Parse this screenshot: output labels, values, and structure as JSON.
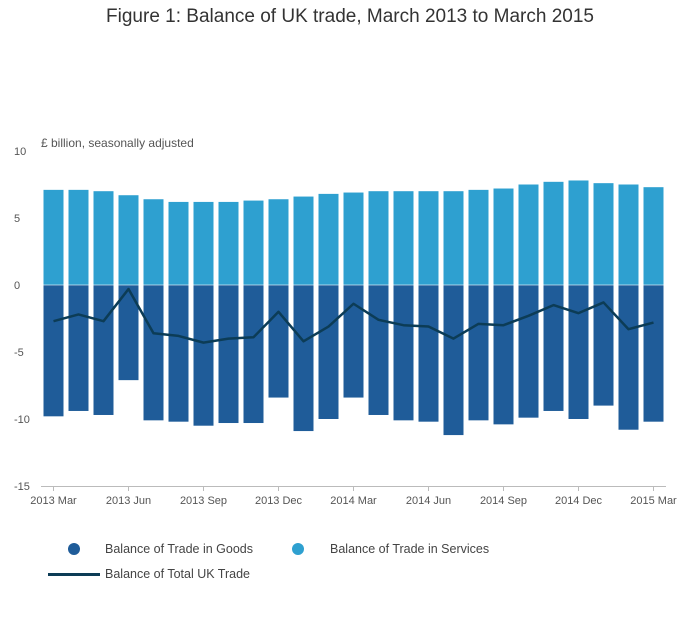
{
  "chart_data": {
    "type": "bar",
    "title": "Figure 1: Balance of UK trade, March 2013 to March 2015",
    "unit_label": "£ billion, seasonally adjusted",
    "ylim": [
      -15,
      10
    ],
    "yticks": [
      10,
      5,
      0,
      -5,
      -10,
      -15
    ],
    "categories": [
      "2013 Mar",
      "2013 Apr",
      "2013 May",
      "2013 Jun",
      "2013 Jul",
      "2013 Aug",
      "2013 Sep",
      "2013 Oct",
      "2013 Nov",
      "2013 Dec",
      "2014 Jan",
      "2014 Feb",
      "2014 Mar",
      "2014 Apr",
      "2014 May",
      "2014 Jun",
      "2014 Jul",
      "2014 Aug",
      "2014 Sep",
      "2014 Oct",
      "2014 Nov",
      "2014 Dec",
      "2015 Jan",
      "2015 Feb",
      "2015 Mar"
    ],
    "x_tick_labels": [
      {
        "index": 0,
        "label": "2013 Mar"
      },
      {
        "index": 3,
        "label": "2013 Jun"
      },
      {
        "index": 6,
        "label": "2013 Sep"
      },
      {
        "index": 9,
        "label": "2013 Dec"
      },
      {
        "index": 12,
        "label": "2014 Mar"
      },
      {
        "index": 15,
        "label": "2014 Jun"
      },
      {
        "index": 18,
        "label": "2014 Sep"
      },
      {
        "index": 21,
        "label": "2014 Dec"
      },
      {
        "index": 24,
        "label": "2015 Mar"
      }
    ],
    "series": [
      {
        "name": "Balance of Trade in Goods",
        "kind": "bar",
        "color": "#1f5c99",
        "values": [
          -9.8,
          -9.4,
          -9.7,
          -7.1,
          -10.1,
          -10.2,
          -10.5,
          -10.3,
          -10.3,
          -8.4,
          -10.9,
          -10.0,
          -8.4,
          -9.7,
          -10.1,
          -10.2,
          -11.2,
          -10.1,
          -10.4,
          -9.9,
          -9.4,
          -10.0,
          -9.0,
          -10.8,
          -10.2
        ]
      },
      {
        "name": "Balance of Trade in Services",
        "kind": "bar",
        "color": "#2ea0d0",
        "values": [
          7.1,
          7.1,
          7.0,
          6.7,
          6.4,
          6.2,
          6.2,
          6.2,
          6.3,
          6.4,
          6.6,
          6.8,
          6.9,
          7.0,
          7.0,
          7.0,
          7.0,
          7.1,
          7.2,
          7.5,
          7.7,
          7.8,
          7.6,
          7.5,
          7.3
        ]
      },
      {
        "name": "Balance of Total UK Trade",
        "kind": "line",
        "color": "#0c3c56",
        "values": [
          -2.7,
          -2.2,
          -2.7,
          -0.3,
          -3.6,
          -3.8,
          -4.3,
          -4.0,
          -3.9,
          -2.0,
          -4.2,
          -3.1,
          -1.4,
          -2.6,
          -3.0,
          -3.1,
          -4.0,
          -2.9,
          -3.0,
          -2.3,
          -1.5,
          -2.1,
          -1.3,
          -3.3,
          -2.8
        ]
      }
    ],
    "legend_position": "bottom",
    "grid": false
  }
}
